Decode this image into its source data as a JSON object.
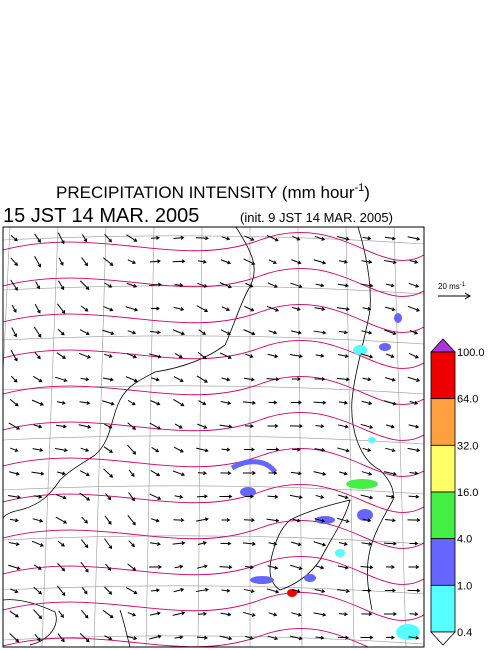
{
  "header": {
    "title": {
      "main": "PRECIPITATION INTENSITY (mm hour",
      "sup": "-1",
      "end": ")"
    },
    "valid_time": "15 JST 14 MAR. 2005",
    "init_time": "(init. 9 JST 14 MAR. 2005)"
  },
  "wind_legend": {
    "label": "20 ms",
    "sup": "-1"
  },
  "color_bar": {
    "labels": [
      "100.0",
      "64.0",
      "32.0",
      "16.0",
      "4.0",
      "1.0",
      "0.4"
    ],
    "colors": [
      "#ee0000",
      "#ffa040",
      "#ffff66",
      "#44ee44",
      "#6666ff",
      "#55ffff"
    ],
    "over_color": "#aa33dd",
    "under_color": "#ffffff"
  }
}
